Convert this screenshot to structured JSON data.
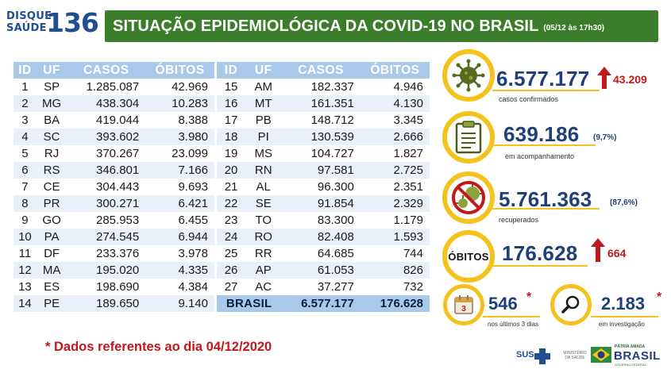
{
  "logo": {
    "line1": "DISQUE",
    "line2": "SAÚDE",
    "number": "136"
  },
  "header": {
    "title": "SITUAÇÃO EPIDEMIOLÓGICA DA COVID-19 NO BRASIL",
    "date": "(05/12 às 17h30)"
  },
  "table": {
    "columns": [
      "ID",
      "UF",
      "CASOS",
      "ÓBITOS"
    ],
    "rows_left": [
      [
        "1",
        "SP",
        "1.285.087",
        "42.969"
      ],
      [
        "2",
        "MG",
        "438.304",
        "10.283"
      ],
      [
        "3",
        "BA",
        "419.044",
        "8.388"
      ],
      [
        "4",
        "SC",
        "393.602",
        "3.980"
      ],
      [
        "5",
        "RJ",
        "370.267",
        "23.099"
      ],
      [
        "6",
        "RS",
        "346.801",
        "7.166"
      ],
      [
        "7",
        "CE",
        "304.443",
        "9.693"
      ],
      [
        "8",
        "PR",
        "300.271",
        "6.421"
      ],
      [
        "9",
        "GO",
        "285.953",
        "6.455"
      ],
      [
        "10",
        "PA",
        "274.545",
        "6.944"
      ],
      [
        "11",
        "DF",
        "233.376",
        "3.978"
      ],
      [
        "12",
        "MA",
        "195.020",
        "4.335"
      ],
      [
        "13",
        "ES",
        "198.690",
        "4.384"
      ],
      [
        "14",
        "PE",
        "189.650",
        "9.140"
      ]
    ],
    "rows_right": [
      [
        "15",
        "AM",
        "182.337",
        "4.946"
      ],
      [
        "16",
        "MT",
        "161.351",
        "4.130"
      ],
      [
        "17",
        "PB",
        "148.712",
        "3.345"
      ],
      [
        "18",
        "PI",
        "130.539",
        "2.666"
      ],
      [
        "19",
        "MS",
        "104.727",
        "1.827"
      ],
      [
        "20",
        "RN",
        "97.581",
        "2.725"
      ],
      [
        "21",
        "AL",
        "96.300",
        "2.351"
      ],
      [
        "22",
        "SE",
        "91.854",
        "2.329"
      ],
      [
        "23",
        "TO",
        "83.300",
        "1.179"
      ],
      [
        "24",
        "RO",
        "82.408",
        "1.593"
      ],
      [
        "25",
        "RR",
        "64.685",
        "744"
      ],
      [
        "26",
        "AP",
        "61.053",
        "826"
      ],
      [
        "27",
        "AC",
        "37.277",
        "732"
      ]
    ],
    "total": {
      "label": "BRASIL",
      "cases": "6.577.177",
      "deaths": "176.628"
    }
  },
  "stats": {
    "confirmed": {
      "value": "6.577.177",
      "increase": "43.209",
      "label": "casos confirmados",
      "icon": "virus-icon"
    },
    "monitoring": {
      "value": "639.186",
      "pct": "(9,7%)",
      "label": "em acompanhamento",
      "icon": "clipboard-icon"
    },
    "recovered": {
      "value": "5.761.363",
      "pct": "(87,6%)",
      "label": "recuperados",
      "icon": "no-virus-icon"
    },
    "deaths": {
      "circle_text": "ÓBITOS",
      "value": "176.628",
      "increase": "664"
    },
    "last3days": {
      "value": "546",
      "asterisk": "*",
      "label": "nos últimos 3 dias",
      "icon": "calendar-icon",
      "calendar_number": "3"
    },
    "investigation": {
      "value": "2.183",
      "asterisk": "*",
      "label": "em investigação",
      "icon": "magnifier-icon"
    }
  },
  "footnote": "* Dados referentes ao dia 04/12/2020",
  "footer": {
    "sus": "SUS",
    "ministry": "MINISTÉRIO DA SAÚDE",
    "patria": "PÁTRIA AMADA",
    "brasil": "BRASIL",
    "gov": "GOVERNO FEDERAL"
  },
  "colors": {
    "header_green": "#3b7d2b",
    "table_header_blue": "#a9c9ea",
    "row_alt": "#e9f0f8",
    "accent_yellow": "#f4c21d",
    "value_blue": "#1f3f7a",
    "alert_red": "#c0181c"
  }
}
